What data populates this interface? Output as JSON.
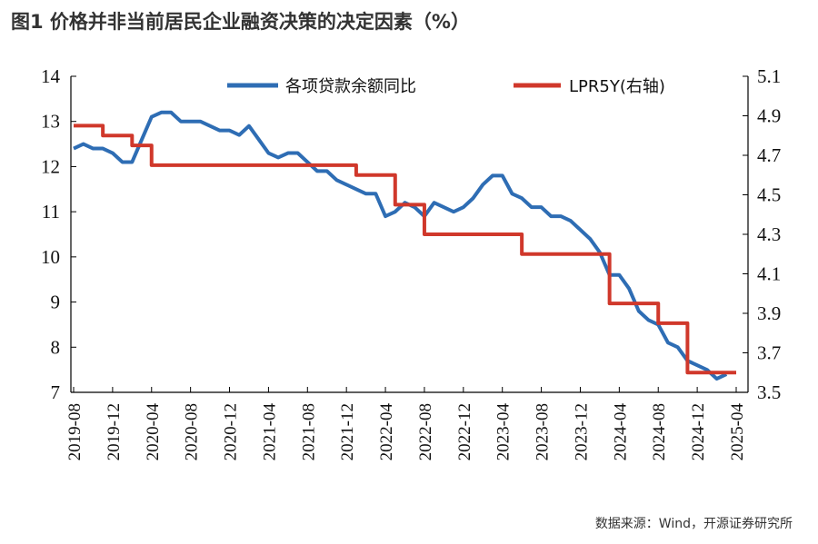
{
  "title": "图1  价格并非当前居民企业融资决策的决定因素（%）",
  "source": "数据来源：Wind，开源证券研究所",
  "chart_data": {
    "type": "line",
    "title": "图1  价格并非当前居民企业融资决策的决定因素（%）",
    "x_ticks": [
      "2019-08",
      "2019-12",
      "2020-04",
      "2020-08",
      "2020-12",
      "2021-04",
      "2021-08",
      "2021-12",
      "2022-04",
      "2022-08",
      "2022-12",
      "2023-04",
      "2023-08",
      "2023-12",
      "2024-04",
      "2024-08",
      "2024-12",
      "2025-04"
    ],
    "y_left": {
      "ylim": [
        7,
        14
      ],
      "ticks": [
        "14",
        "13",
        "12",
        "11",
        "10",
        "9",
        "8",
        "7"
      ]
    },
    "y_right": {
      "ylim": [
        3.5,
        5.1
      ],
      "ticks": [
        "5.1",
        "4.9",
        "4.7",
        "4.5",
        "4.3",
        "4.1",
        "3.9",
        "3.7",
        "3.5"
      ]
    },
    "legend_position": "top",
    "grid": false,
    "series": [
      {
        "name": "各项贷款余额同比",
        "axis": "left",
        "color": "#2E6DB4",
        "values": [
          12.4,
          12.5,
          12.4,
          12.4,
          12.3,
          12.1,
          12.1,
          12.6,
          13.1,
          13.2,
          13.2,
          13.0,
          13.0,
          13.0,
          12.9,
          12.8,
          12.8,
          12.7,
          12.9,
          12.6,
          12.3,
          12.2,
          12.3,
          12.3,
          12.1,
          11.9,
          11.9,
          11.7,
          11.6,
          11.5,
          11.4,
          11.4,
          10.9,
          11.0,
          11.2,
          11.1,
          10.9,
          11.2,
          11.1,
          11.0,
          11.1,
          11.3,
          11.6,
          11.8,
          11.8,
          11.4,
          11.3,
          11.1,
          11.1,
          10.9,
          10.9,
          10.8,
          10.6,
          10.4,
          10.1,
          9.6,
          9.6,
          9.3,
          8.8,
          8.6,
          8.5,
          8.1,
          8.0,
          7.7,
          7.6,
          7.5,
          7.3,
          7.4
        ]
      },
      {
        "name": "LPR5Y(右轴)",
        "axis": "right",
        "color": "#D0382B",
        "values": [
          4.85,
          4.85,
          4.85,
          4.8,
          4.8,
          4.8,
          4.75,
          4.75,
          4.65,
          4.65,
          4.65,
          4.65,
          4.65,
          4.65,
          4.65,
          4.65,
          4.65,
          4.65,
          4.65,
          4.65,
          4.65,
          4.65,
          4.65,
          4.65,
          4.65,
          4.65,
          4.65,
          4.65,
          4.65,
          4.6,
          4.6,
          4.6,
          4.6,
          4.45,
          4.45,
          4.45,
          4.3,
          4.3,
          4.3,
          4.3,
          4.3,
          4.3,
          4.3,
          4.3,
          4.3,
          4.3,
          4.2,
          4.2,
          4.2,
          4.2,
          4.2,
          4.2,
          4.2,
          4.2,
          4.2,
          3.95,
          3.95,
          3.95,
          3.95,
          3.95,
          3.85,
          3.85,
          3.85,
          3.6,
          3.6,
          3.6,
          3.6,
          3.6,
          3.6
        ]
      }
    ]
  }
}
